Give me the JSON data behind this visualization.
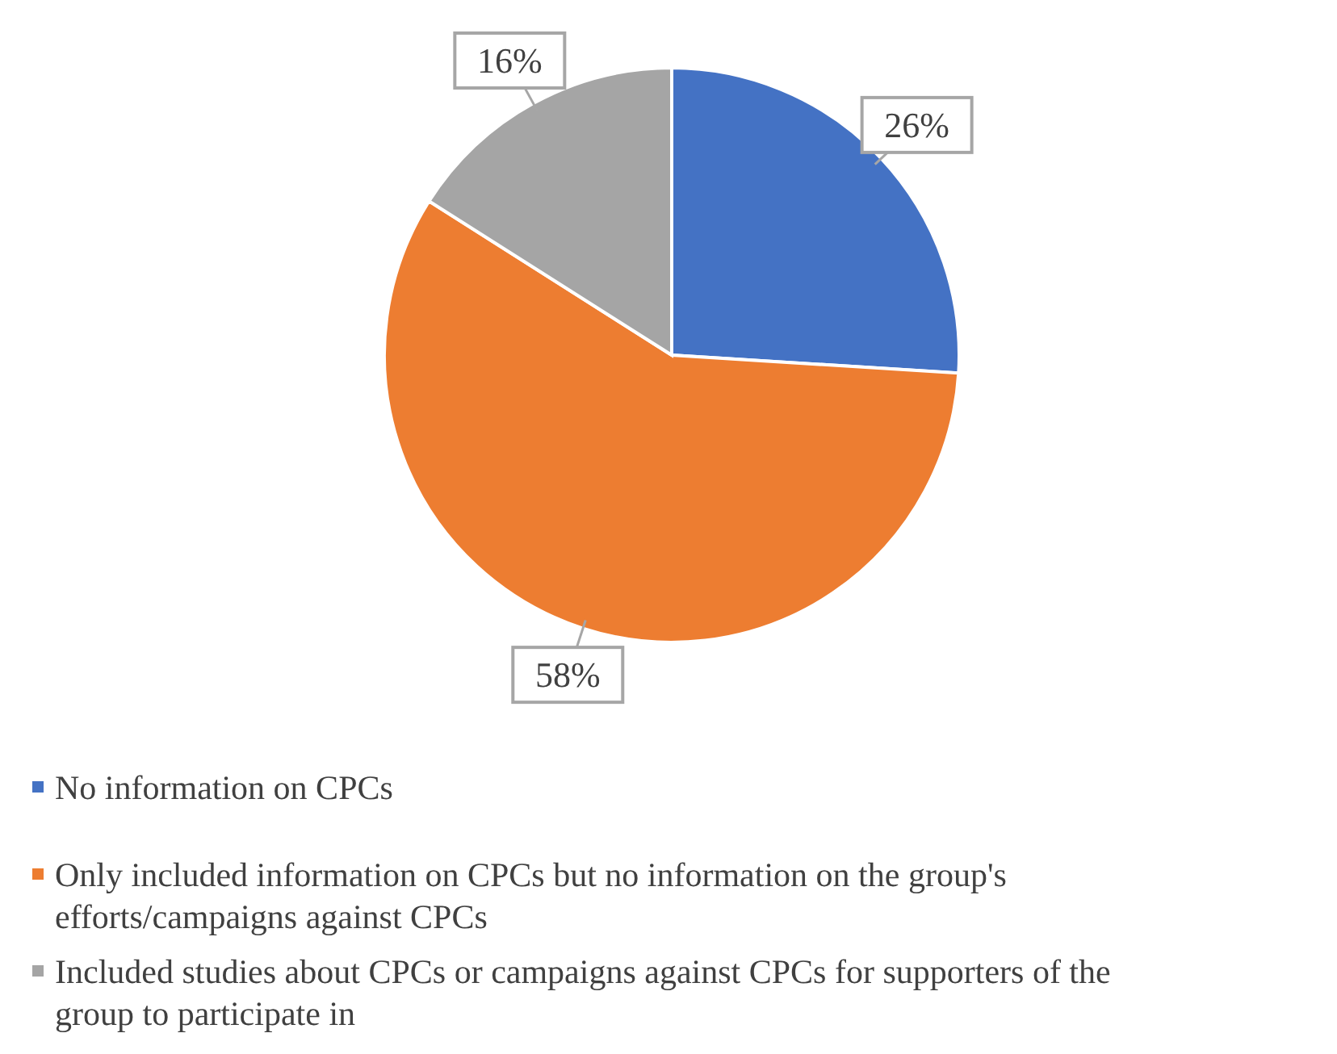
{
  "chart_data": {
    "type": "pie",
    "categories": [
      "No information on CPCs",
      "Only included information on CPCs but no information on the group's efforts/campaigns against CPCs",
      "Included studies about CPCs or campaigns against CPCs for supporters of the group to participate in"
    ],
    "values": [
      26,
      58,
      16
    ],
    "value_labels": [
      "26%",
      "58%",
      "16%"
    ],
    "colors": [
      "#4472c4",
      "#ed7d31",
      "#a5a5a5"
    ],
    "legend": "bottom"
  }
}
